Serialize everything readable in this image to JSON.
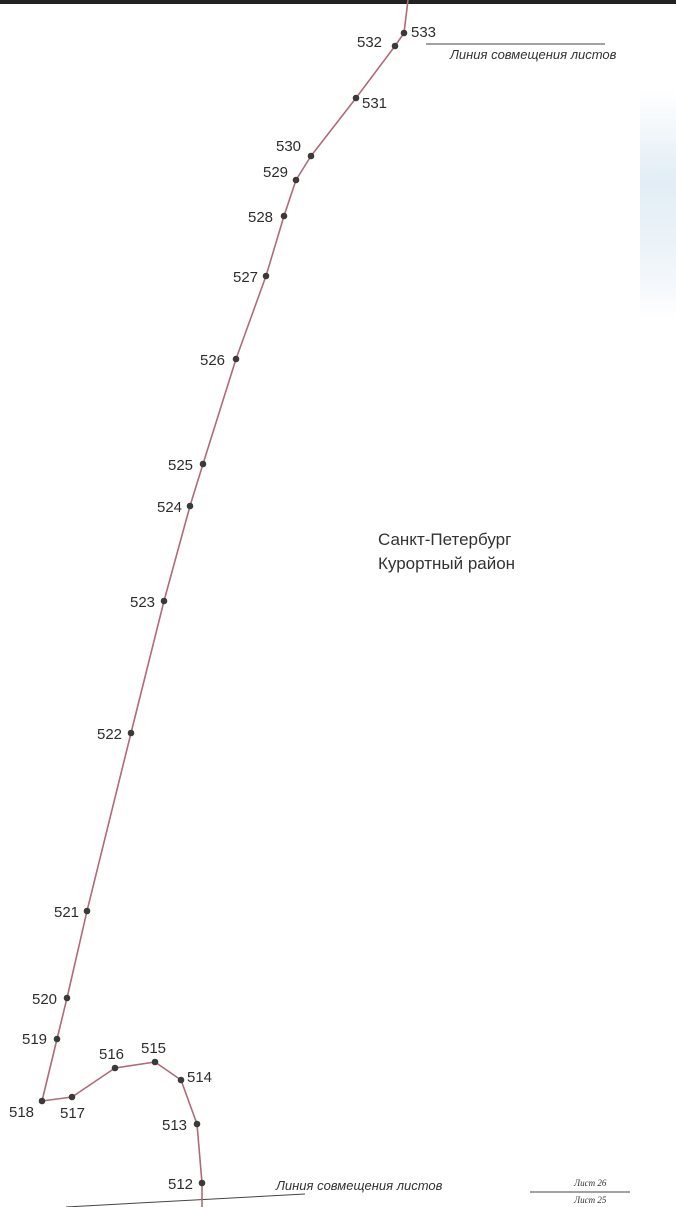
{
  "district": {
    "city": "Санкт-Петербург",
    "name": "Курортный район"
  },
  "sheet_join": {
    "top_label": "Линия совмещения листов",
    "bottom_label": "Линия совмещения листов",
    "sheet_upper": "Лист 26",
    "sheet_lower": "Лист 25"
  },
  "boundary": {
    "line_color": "#b06a78",
    "point_color": "#3a3a3a",
    "points": [
      {
        "id": "512",
        "label": "512"
      },
      {
        "id": "513",
        "label": "513"
      },
      {
        "id": "514",
        "label": "514"
      },
      {
        "id": "515",
        "label": "515"
      },
      {
        "id": "516",
        "label": "516"
      },
      {
        "id": "517",
        "label": "517"
      },
      {
        "id": "518",
        "label": "518"
      },
      {
        "id": "519",
        "label": "519"
      },
      {
        "id": "520",
        "label": "520"
      },
      {
        "id": "521",
        "label": "521"
      },
      {
        "id": "522",
        "label": "522"
      },
      {
        "id": "523",
        "label": "523"
      },
      {
        "id": "524",
        "label": "524"
      },
      {
        "id": "525",
        "label": "525"
      },
      {
        "id": "526",
        "label": "526"
      },
      {
        "id": "527",
        "label": "527"
      },
      {
        "id": "528",
        "label": "528"
      },
      {
        "id": "529",
        "label": "529"
      },
      {
        "id": "530",
        "label": "530"
      },
      {
        "id": "531",
        "label": "531"
      },
      {
        "id": "532",
        "label": "532"
      },
      {
        "id": "533",
        "label": "533"
      }
    ]
  }
}
